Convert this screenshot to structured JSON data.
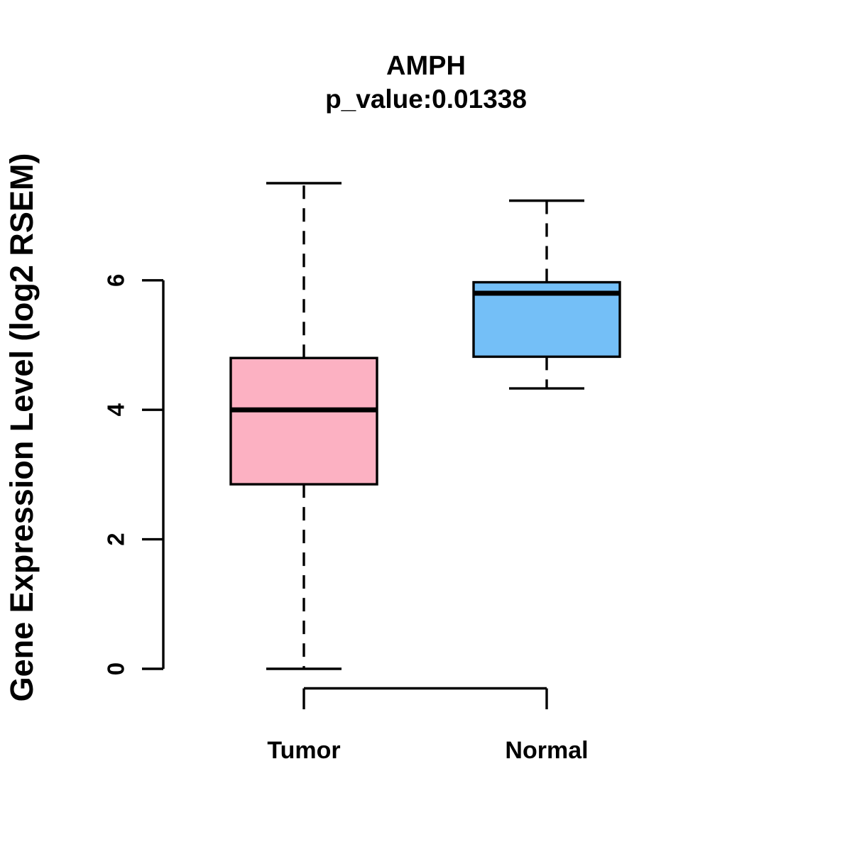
{
  "chart_data": {
    "type": "boxplot",
    "title": "AMPH",
    "subtitle": "p_value:0.01338",
    "ylabel": "Gene Expression Level (log2 RSEM)",
    "xlabel": "",
    "categories": [
      "Tumor",
      "Normal"
    ],
    "yticks": [
      0,
      2,
      4,
      6
    ],
    "ylim": [
      0,
      7.6
    ],
    "grid": false,
    "legend": "none",
    "background": "#FFFFFF",
    "line_color": "#000000",
    "series": [
      {
        "name": "Tumor",
        "box_color": "#FCB1C2",
        "whisker_low": 0.0,
        "q1": 2.85,
        "median": 4.0,
        "q3": 4.8,
        "whisker_high": 7.5,
        "outliers": []
      },
      {
        "name": "Normal",
        "box_color": "#74BFF7",
        "whisker_low": 4.33,
        "q1": 4.82,
        "median": 5.8,
        "q3": 5.97,
        "whisker_high": 7.23,
        "outliers": []
      }
    ]
  }
}
